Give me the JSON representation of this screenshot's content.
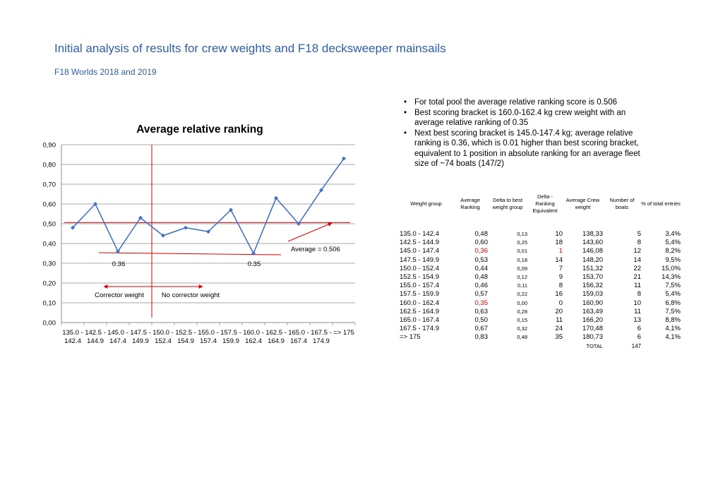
{
  "header": {
    "title": "Initial analysis of results for crew weights and F18 decksweeper mainsails",
    "subtitle": "F18 Worlds 2018 and 2019"
  },
  "chart_data": {
    "type": "line",
    "title": "Average relative ranking",
    "xlabel": "",
    "ylabel": "",
    "ylim": [
      0,
      0.9
    ],
    "y_ticks": [
      "0,00",
      "0,10",
      "0,20",
      "0,30",
      "0,40",
      "0,50",
      "0,60",
      "0,70",
      "0,80",
      "0,90"
    ],
    "grid": true,
    "line_color": "#4472c4",
    "categories": [
      [
        "135.0 -",
        "142.4"
      ],
      [
        "142.5 -",
        "144.9"
      ],
      [
        "145.0 -",
        "147.4"
      ],
      [
        "147.5 -",
        "149.9"
      ],
      [
        "150.0 -",
        "152.4"
      ],
      [
        "152.5 -",
        "154.9"
      ],
      [
        "155.0 -",
        "157.4"
      ],
      [
        "157.5 -",
        "159.9"
      ],
      [
        "160.0 -",
        "162.4"
      ],
      [
        "162.5 -",
        "164.9"
      ],
      [
        "165.0 -",
        "167.4"
      ],
      [
        "167.5 -",
        "174.9"
      ],
      [
        "=> 175",
        ""
      ]
    ],
    "values": [
      0.48,
      0.6,
      0.36,
      0.53,
      0.44,
      0.48,
      0.46,
      0.57,
      0.35,
      0.63,
      0.5,
      0.67,
      0.83
    ],
    "average_value": 0.506,
    "annotation_color": "#e00000",
    "annotations": {
      "average_label": "Average = 0.506",
      "label_036": "0.36",
      "label_035": "0.35",
      "corrector": "Corrector weight",
      "no_corrector": "No corrector weight"
    }
  },
  "bullets": [
    "For total pool the average relative ranking score is 0.506",
    "Best scoring bracket is 160.0-162.4 kg crew weight with an average relative ranking of 0.35",
    "Next best scoring bracket is 145.0-147.4 kg; average relative ranking is 0.36, which is 0.01 higher than best scoring bracket, equivalent to 1 position in absolute ranking for an average fleet size of ~74 boats (147/2)"
  ],
  "table": {
    "headers": {
      "group": "Weight group",
      "rank": "Average Ranking",
      "delta": "Delta to best weight group",
      "equiv": "Delta - Ranking Equivalent",
      "crew": "Average Crew weight",
      "boats": "Number of boats",
      "pct": "% of total entries"
    },
    "rows": [
      {
        "group": "135.0 - 142.4",
        "rank": "0,48",
        "delta": "0,13",
        "equiv": "10",
        "crew": "138,33",
        "boats": "5",
        "pct": "3,4%"
      },
      {
        "group": "142.5 - 144.9",
        "rank": "0,60",
        "delta": "0,25",
        "equiv": "18",
        "crew": "143,60",
        "boats": "8",
        "pct": "5,4%"
      },
      {
        "group": "145.0 - 147.4",
        "rank": "0,36",
        "delta": "0,01",
        "equiv": "1",
        "crew": "146,08",
        "boats": "12",
        "pct": "8,2%",
        "highlight": true
      },
      {
        "group": "147.5 - 149.9",
        "rank": "0,53",
        "delta": "0,18",
        "equiv": "14",
        "crew": "148,20",
        "boats": "14",
        "pct": "9,5%"
      },
      {
        "group": "150.0 - 152.4",
        "rank": "0,44",
        "delta": "0,09",
        "equiv": "7",
        "crew": "151,32",
        "boats": "22",
        "pct": "15,0%"
      },
      {
        "group": "152.5 - 154.9",
        "rank": "0,48",
        "delta": "0,12",
        "equiv": "9",
        "crew": "153,70",
        "boats": "21",
        "pct": "14,3%"
      },
      {
        "group": "155.0 - 157.4",
        "rank": "0,46",
        "delta": "0,11",
        "equiv": "8",
        "crew": "156,32",
        "boats": "11",
        "pct": "7,5%"
      },
      {
        "group": "157.5 - 159.9",
        "rank": "0,57",
        "delta": "0,22",
        "equiv": "16",
        "crew": "159,03",
        "boats": "8",
        "pct": "5,4%"
      },
      {
        "group": "160.0 - 162.4",
        "rank": "0,35",
        "delta": "0,00",
        "equiv": "0",
        "crew": "160,90",
        "boats": "10",
        "pct": "6,8%",
        "highlight_rank": true
      },
      {
        "group": "162.5 - 164.9",
        "rank": "0,63",
        "delta": "0,28",
        "equiv": "20",
        "crew": "163,49",
        "boats": "11",
        "pct": "7,5%"
      },
      {
        "group": "165.0 - 167.4",
        "rank": "0,50",
        "delta": "0,15",
        "equiv": "11",
        "crew": "166,20",
        "boats": "13",
        "pct": "8,8%"
      },
      {
        "group": "167.5 - 174.9",
        "rank": "0,67",
        "delta": "0,32",
        "equiv": "24",
        "crew": "170,48",
        "boats": "6",
        "pct": "4,1%"
      },
      {
        "group": "=> 175",
        "rank": "0,83",
        "delta": "0,48",
        "equiv": "35",
        "crew": "180,73",
        "boats": "6",
        "pct": "4,1%"
      }
    ],
    "total_label": "TOTAL",
    "total_value": "147"
  }
}
